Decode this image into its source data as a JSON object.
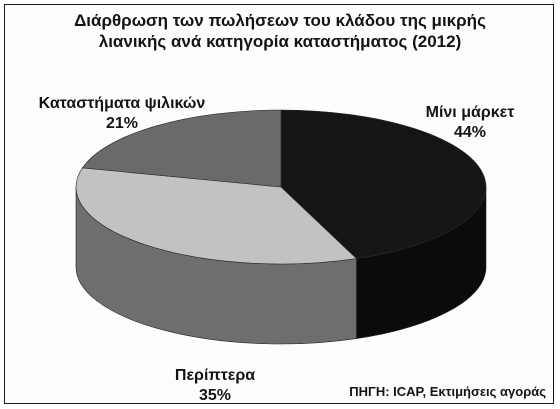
{
  "chart_data": {
    "type": "pie",
    "title_lines": [
      "Διάρθρωση των πωλήσεων του κλάδου της μικρής",
      "λιανικής ανά κατηγορία καταστήματος (2012)"
    ],
    "slices": [
      {
        "label": "Μίνι μάρκετ",
        "value": 44,
        "value_label": "44%",
        "color": "#151515",
        "side_color": "#0b0b0b"
      },
      {
        "label": "Περίπτερα",
        "value": 35,
        "value_label": "35%",
        "color": "#c2c2c2",
        "side_color": "#6e6e6e"
      },
      {
        "label": "Καταστήματα ψιλικών",
        "value": 21,
        "value_label": "21%",
        "color": "#6a6a6a",
        "side_color": "#4c4c4c"
      }
    ],
    "source": "ΠΗΓΗ: ICAP, Εκτιμήσεις αγοράς"
  }
}
